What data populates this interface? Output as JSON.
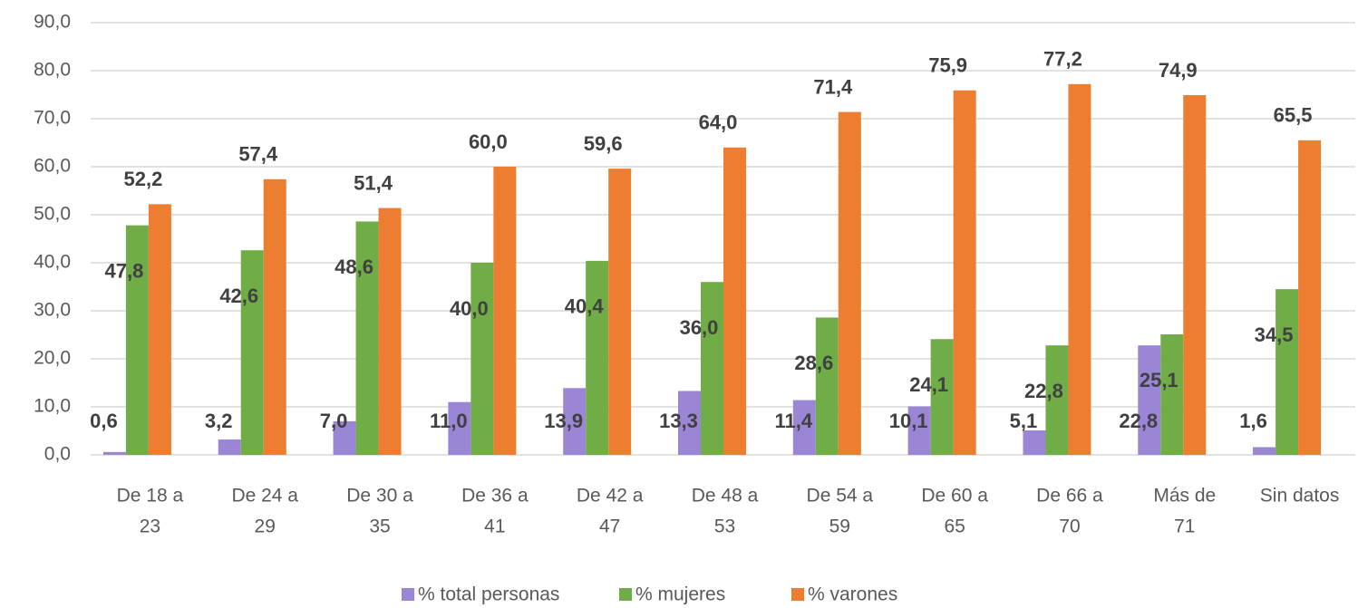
{
  "chart_data": {
    "type": "bar",
    "categories": [
      [
        "De 18 a",
        "23"
      ],
      [
        "De 24 a",
        "29"
      ],
      [
        "De 30 a",
        "35"
      ],
      [
        "De 36 a",
        "41"
      ],
      [
        "De 42 a",
        "47"
      ],
      [
        "De 48 a",
        "53"
      ],
      [
        "De 54 a",
        "59"
      ],
      [
        "De 60 a",
        "65"
      ],
      [
        "De 66 a",
        "70"
      ],
      [
        "Más de",
        "71"
      ],
      [
        "Sin datos"
      ]
    ],
    "series": [
      {
        "name": "% total personas",
        "color": "#9b86d6",
        "values": [
          0.6,
          3.2,
          7.0,
          11.0,
          13.9,
          13.3,
          11.4,
          10.1,
          5.1,
          22.8,
          1.6
        ],
        "value_labels": [
          "0,6",
          "3,2",
          "7,0",
          "11,0",
          "13,9",
          "13,3",
          "11,4",
          "10,1",
          "5,1",
          "22,8",
          "1,6"
        ]
      },
      {
        "name": "% mujeres",
        "color": "#70ad47",
        "values": [
          47.8,
          42.6,
          48.6,
          40.0,
          40.4,
          36.0,
          28.6,
          24.1,
          22.8,
          25.1,
          34.5
        ],
        "value_labels": [
          "47,8",
          "42,6",
          "48,6",
          "40,0",
          "40,4",
          "36,0",
          "28,6",
          "24,1",
          "22,8",
          "25,1",
          "34,5"
        ]
      },
      {
        "name": "% varones",
        "color": "#ed7d31",
        "values": [
          52.2,
          57.4,
          51.4,
          60.0,
          59.6,
          64.0,
          71.4,
          75.9,
          77.2,
          74.9,
          65.5
        ],
        "value_labels": [
          "52,2",
          "57,4",
          "51,4",
          "60,0",
          "59,6",
          "64,0",
          "71,4",
          "75,9",
          "77,2",
          "74,9",
          "65,5"
        ]
      }
    ],
    "ylim": [
      0,
      90
    ],
    "yticks": [
      {
        "value": 0,
        "label": "0,0"
      },
      {
        "value": 10,
        "label": "10,0"
      },
      {
        "value": 20,
        "label": "20,0"
      },
      {
        "value": 30,
        "label": "30,0"
      },
      {
        "value": 40,
        "label": "40,0"
      },
      {
        "value": 50,
        "label": "50,0"
      },
      {
        "value": 60,
        "label": "60,0"
      },
      {
        "value": 70,
        "label": "70,0"
      },
      {
        "value": 80,
        "label": "80,0"
      },
      {
        "value": 90,
        "label": "90,0"
      }
    ],
    "grid": true,
    "legend": "bottom"
  }
}
